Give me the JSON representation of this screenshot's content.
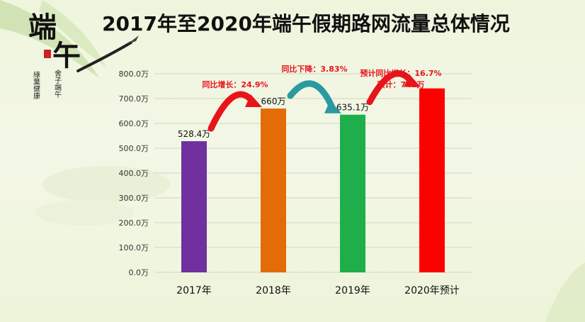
{
  "logo": {
    "main": "端午",
    "side_left": "綠葉健康",
    "side_right": "舍子端午",
    "colors": {
      "ink": "#111111",
      "seal": "#cc2222"
    }
  },
  "chart_data": {
    "type": "bar",
    "title": "2017年至2020年端午假期路网流量总体情况",
    "categories": [
      "2017年",
      "2018年",
      "2019年",
      "2020年预计"
    ],
    "values": [
      528.4,
      660,
      635.1,
      741
    ],
    "data_labels": [
      "528.4万",
      "660万",
      "635.1万",
      ""
    ],
    "bar_colors": [
      "#7030a0",
      "#e36c09",
      "#1eaf4b",
      "#ff0000"
    ],
    "ylim": [
      0,
      800
    ],
    "yticks": [
      "0.0万",
      "100.0万",
      "200.0万",
      "300.0万",
      "400.0万",
      "500.0万",
      "600.0万",
      "700.0万",
      "800.0万"
    ],
    "grid": true,
    "annotations": [
      {
        "from": 0,
        "to": 1,
        "lines": [
          "同比增长：24.9%"
        ],
        "arrow_color": "#e8141b"
      },
      {
        "from": 1,
        "to": 2,
        "lines": [
          "同比下降：3.83%"
        ],
        "arrow_color": "#2a9aa0"
      },
      {
        "from": 2,
        "to": 3,
        "lines": [
          "预计同比增长：16.7%",
          "预计：741万"
        ],
        "arrow_color": "#e8141b"
      }
    ]
  }
}
